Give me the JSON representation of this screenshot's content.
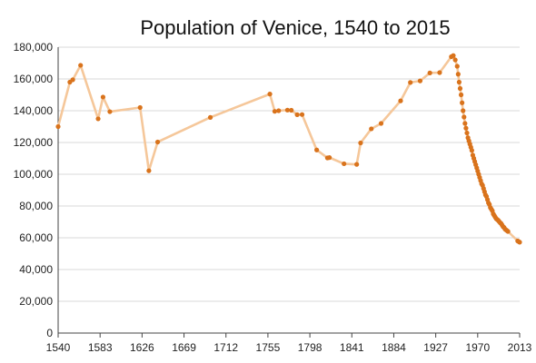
{
  "chart_data": {
    "type": "line",
    "title": "Population of Venice, 1540 to 2015",
    "xlabel": "",
    "ylabel": "",
    "xlim": [
      1540,
      2013
    ],
    "ylim": [
      0,
      180000
    ],
    "x_ticks": [
      1540,
      1583,
      1626,
      1669,
      1712,
      1755,
      1798,
      1841,
      1884,
      1927,
      1970,
      2013
    ],
    "y_ticks": [
      0,
      20000,
      40000,
      60000,
      80000,
      100000,
      120000,
      140000,
      160000,
      180000
    ],
    "y_tick_labels": [
      "0",
      "20,000",
      "40,000",
      "60,000",
      "80,000",
      "100,000",
      "120,000",
      "140,000",
      "160,000",
      "180,000"
    ],
    "grid": "horizontal",
    "legend": "none",
    "series": [
      {
        "line_color": "#f5c79a",
        "marker_color": "#d9731c",
        "points": [
          [
            1540,
            130000
          ],
          [
            1552,
            158000
          ],
          [
            1555,
            159500
          ],
          [
            1563,
            168600
          ],
          [
            1581,
            134900
          ],
          [
            1586,
            148600
          ],
          [
            1593,
            139400
          ],
          [
            1624,
            142000
          ],
          [
            1633,
            102200
          ],
          [
            1642,
            120300
          ],
          [
            1696,
            135800
          ],
          [
            1757,
            150500
          ],
          [
            1762,
            139600
          ],
          [
            1766,
            140000
          ],
          [
            1775,
            140400
          ],
          [
            1779,
            140300
          ],
          [
            1785,
            137500
          ],
          [
            1790,
            137600
          ],
          [
            1805,
            115300
          ],
          [
            1816,
            110300
          ],
          [
            1818,
            110500
          ],
          [
            1833,
            106600
          ],
          [
            1846,
            106200
          ],
          [
            1850,
            119700
          ],
          [
            1861,
            128600
          ],
          [
            1871,
            132000
          ],
          [
            1891,
            146200
          ],
          [
            1901,
            157800
          ],
          [
            1911,
            158800
          ],
          [
            1921,
            163800
          ],
          [
            1931,
            164000
          ],
          [
            1943,
            174000
          ],
          [
            1945,
            174700
          ],
          [
            1947,
            172000
          ],
          [
            1949,
            168000
          ],
          [
            1950,
            163000
          ],
          [
            1951,
            158000
          ],
          [
            1952,
            154000
          ],
          [
            1953,
            150000
          ],
          [
            1954,
            145000
          ],
          [
            1955,
            140000
          ],
          [
            1956,
            136000
          ],
          [
            1957,
            132000
          ],
          [
            1958,
            129000
          ],
          [
            1959,
            126000
          ],
          [
            1960,
            123000
          ],
          [
            1961,
            121000
          ],
          [
            1962,
            119000
          ],
          [
            1963,
            117000
          ],
          [
            1964,
            115000
          ],
          [
            1965,
            112000
          ],
          [
            1966,
            110000
          ],
          [
            1967,
            108000
          ],
          [
            1968,
            106000
          ],
          [
            1969,
            104000
          ],
          [
            1970,
            102000
          ],
          [
            1971,
            100000
          ],
          [
            1972,
            98000
          ],
          [
            1973,
            96000
          ],
          [
            1974,
            94000
          ],
          [
            1975,
            93000
          ],
          [
            1976,
            91000
          ],
          [
            1977,
            89000
          ],
          [
            1978,
            87000
          ],
          [
            1979,
            86000
          ],
          [
            1980,
            84000
          ],
          [
            1981,
            82000
          ],
          [
            1982,
            81000
          ],
          [
            1983,
            79000
          ],
          [
            1984,
            78000
          ],
          [
            1985,
            77000
          ],
          [
            1986,
            75000
          ],
          [
            1987,
            74000
          ],
          [
            1988,
            73000
          ],
          [
            1989,
            72000
          ],
          [
            1990,
            71500
          ],
          [
            1991,
            71000
          ],
          [
            1992,
            70200
          ],
          [
            1993,
            69500
          ],
          [
            1994,
            69000
          ],
          [
            1995,
            68000
          ],
          [
            1996,
            67000
          ],
          [
            1997,
            66500
          ],
          [
            1998,
            65500
          ],
          [
            1999,
            65000
          ],
          [
            2000,
            64500
          ],
          [
            2001,
            64000
          ],
          [
            2011,
            58000
          ],
          [
            2012,
            57600
          ],
          [
            2013,
            57200
          ]
        ]
      }
    ]
  }
}
